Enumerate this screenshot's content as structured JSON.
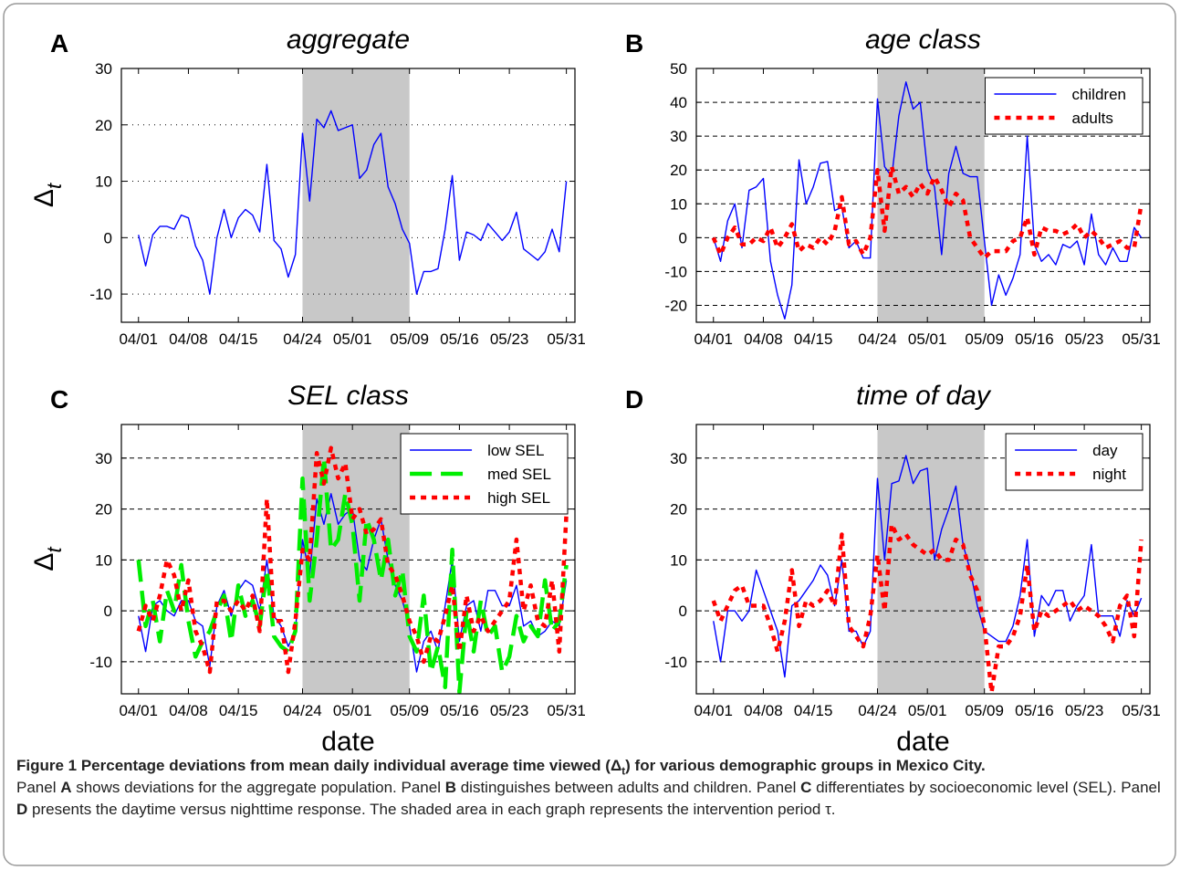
{
  "chart_data": [
    {
      "type": "line",
      "label": "A",
      "title": "aggregate",
      "ylabel": {
        "symbol": "Δ",
        "subscript": "t"
      },
      "categories": [
        "04/01",
        null,
        null,
        null,
        null,
        null,
        null,
        "04/08",
        null,
        null,
        null,
        null,
        null,
        null,
        "04/15",
        null,
        null,
        null,
        null,
        null,
        null,
        null,
        null,
        "04/24",
        null,
        null,
        null,
        null,
        null,
        null,
        "05/01",
        null,
        null,
        null,
        null,
        null,
        null,
        null,
        "05/09",
        null,
        null,
        null,
        null,
        null,
        null,
        "05/16",
        null,
        null,
        null,
        null,
        null,
        null,
        "05/23",
        null,
        null,
        null,
        null,
        null,
        null,
        null,
        "05/31"
      ],
      "color": "#0000ff",
      "linestyle": "solid",
      "values": [
        0.5,
        -5,
        0.5,
        2,
        2,
        1.5,
        4,
        3.5,
        -1.5,
        -4,
        -10,
        0,
        5,
        0,
        3.5,
        5,
        4,
        1,
        13,
        -0.5,
        -2,
        -7,
        -3,
        18.5,
        6.5,
        21,
        19.5,
        22.5,
        19,
        19.5,
        20,
        10.5,
        12,
        16.5,
        18.5,
        9,
        6,
        1.5,
        -1,
        -10,
        -6,
        -6,
        -5.5,
        1.5,
        11,
        -4,
        1,
        0.5,
        -0.5,
        2.5,
        1,
        -0.5,
        1,
        4.5,
        -2,
        -3,
        -4,
        -2.5,
        1.5,
        -2.5,
        10
      ],
      "ylim": [
        -15,
        30
      ],
      "yticks": [
        -10,
        0,
        10,
        20,
        30
      ],
      "grid": true,
      "grid_style": "dotted",
      "shade": [
        "04/24",
        "05/09"
      ]
    },
    {
      "type": "line",
      "label": "B",
      "title": "age class",
      "categories": [
        "04/01",
        null,
        null,
        null,
        null,
        null,
        null,
        "04/08",
        null,
        null,
        null,
        null,
        null,
        null,
        "04/15",
        null,
        null,
        null,
        null,
        null,
        null,
        null,
        null,
        "04/24",
        null,
        null,
        null,
        null,
        null,
        null,
        "05/01",
        null,
        null,
        null,
        null,
        null,
        null,
        null,
        "05/09",
        null,
        null,
        null,
        null,
        null,
        null,
        "05/16",
        null,
        null,
        null,
        null,
        null,
        null,
        "05/23",
        null,
        null,
        null,
        null,
        null,
        null,
        null,
        "05/31"
      ],
      "series": [
        {
          "name": "children",
          "color": "#0000ff",
          "linestyle": "solid",
          "values": [
            0,
            -7,
            5,
            10,
            -3,
            14,
            15,
            17.5,
            -7,
            -17,
            -24,
            -14,
            23,
            10,
            15,
            22,
            22.5,
            8,
            9,
            -3,
            -1,
            -6,
            -6,
            41,
            21,
            18,
            36,
            46,
            38,
            40,
            20,
            15,
            -5,
            19,
            27,
            19,
            18,
            18,
            -1,
            -20,
            -11,
            -17,
            -12,
            -5,
            30,
            -2,
            -7,
            -5,
            -8,
            -2,
            -3,
            -1,
            -8,
            7,
            -5,
            -8,
            -3,
            -7,
            -7,
            3,
            0
          ]
        },
        {
          "name": "adults",
          "color": "#ff0000",
          "linestyle": "dotted",
          "values": [
            0,
            -5,
            0,
            3,
            -2,
            -2,
            0,
            -1,
            3,
            -3,
            0,
            4,
            -4,
            -2,
            -3,
            0,
            -2,
            2,
            12,
            -2,
            -1,
            -5,
            0,
            20,
            2,
            21,
            13,
            15,
            12,
            16,
            13,
            18,
            14,
            9,
            13,
            11,
            0,
            -3,
            -6,
            -4,
            -4,
            -4,
            -1,
            0,
            6,
            -5,
            3,
            2,
            2,
            1,
            2,
            4,
            0,
            2,
            0,
            -3,
            -2,
            -1,
            -3,
            -3,
            10
          ]
        }
      ],
      "ylim": [
        -25,
        50
      ],
      "yticks": [
        -20,
        -10,
        0,
        10,
        20,
        30,
        40,
        50
      ],
      "grid": true,
      "grid_style": "dashed",
      "shade": [
        "04/24",
        "05/09"
      ],
      "legend": "upper right"
    },
    {
      "type": "line",
      "label": "C",
      "title": "SEL class",
      "ylabel": {
        "symbol": "Δ",
        "subscript": "t"
      },
      "xlabel": "date",
      "categories": [
        "04/01",
        null,
        null,
        null,
        null,
        null,
        null,
        "04/08",
        null,
        null,
        null,
        null,
        null,
        null,
        "04/15",
        null,
        null,
        null,
        null,
        null,
        null,
        null,
        null,
        "04/24",
        null,
        null,
        null,
        null,
        null,
        null,
        "05/01",
        null,
        null,
        null,
        null,
        null,
        null,
        null,
        "05/09",
        null,
        null,
        null,
        null,
        null,
        null,
        "05/16",
        null,
        null,
        null,
        null,
        null,
        null,
        "05/23",
        null,
        null,
        null,
        null,
        null,
        null,
        null,
        "05/31"
      ],
      "series": [
        {
          "name": "low SEL",
          "color": "#0000ff",
          "linestyle": "solid",
          "values": [
            -1,
            -8,
            1,
            2,
            0,
            -1,
            2,
            2,
            -2,
            -3,
            -11,
            1,
            4,
            -1,
            4,
            6,
            5,
            0,
            10,
            -1,
            -3,
            -7,
            -4,
            14,
            7,
            22,
            17,
            23,
            17,
            19,
            20,
            10,
            8,
            14,
            18,
            10,
            5,
            2,
            -3,
            -12,
            -6,
            -4,
            -8,
            1,
            10,
            -6,
            1,
            2,
            -4,
            4,
            4,
            1,
            1,
            5,
            -3,
            -2,
            -5,
            -4,
            -2,
            -3,
            6
          ]
        },
        {
          "name": "med SEL",
          "color": "#00ee00",
          "linestyle": "dashed",
          "values": [
            10,
            -3,
            2,
            -6,
            4,
            0,
            9,
            -2,
            -9,
            -6,
            -4,
            0,
            3,
            -6,
            5,
            -1,
            2,
            -3,
            8,
            -5,
            -7,
            -8,
            -4,
            26,
            2,
            14,
            30,
            12,
            14,
            23,
            17,
            2,
            18,
            14,
            6,
            14,
            3,
            8,
            -5,
            -8,
            3,
            -12,
            -7,
            -15,
            12,
            -16,
            0,
            -8,
            2,
            -5,
            -3,
            -12,
            -9,
            -1,
            -6,
            -3,
            -5,
            6,
            -4,
            -2,
            9
          ]
        },
        {
          "name": "high SEL",
          "color": "#ff0000",
          "linestyle": "dotted",
          "values": [
            -4,
            1,
            -2,
            3,
            10,
            7,
            0,
            6,
            -4,
            -7,
            -12,
            2,
            2,
            0,
            2,
            0,
            3,
            -4,
            22,
            -2,
            -2,
            -12,
            -2,
            12,
            10,
            31,
            25,
            32,
            26,
            29,
            18,
            20,
            15,
            16,
            18,
            9,
            7,
            3,
            -2,
            -5,
            -10,
            -5,
            -6,
            -1,
            5,
            -8,
            3,
            -4,
            -1,
            -4,
            -2,
            0,
            2,
            14,
            0,
            5,
            -2,
            -3,
            6,
            -8,
            19
          ]
        }
      ],
      "ylim": [
        -16.3,
        36.6
      ],
      "yticks": [
        -10,
        0,
        10,
        20,
        30
      ],
      "grid": true,
      "grid_style": "dashed",
      "shade": [
        "04/24",
        "05/09"
      ],
      "legend": "upper right"
    },
    {
      "type": "line",
      "label": "D",
      "title": "time of day",
      "xlabel": "date",
      "categories": [
        "04/01",
        null,
        null,
        null,
        null,
        null,
        null,
        "04/08",
        null,
        null,
        null,
        null,
        null,
        null,
        "04/15",
        null,
        null,
        null,
        null,
        null,
        null,
        null,
        null,
        "04/24",
        null,
        null,
        null,
        null,
        null,
        null,
        "05/01",
        null,
        null,
        null,
        null,
        null,
        null,
        null,
        "05/09",
        null,
        null,
        null,
        null,
        null,
        null,
        "05/16",
        null,
        null,
        null,
        null,
        null,
        null,
        "05/23",
        null,
        null,
        null,
        null,
        null,
        null,
        null,
        "05/31"
      ],
      "series": [
        {
          "name": "day",
          "color": "#0000ff",
          "linestyle": "solid",
          "values": [
            -2,
            -10,
            0,
            0,
            -2,
            0,
            8,
            4,
            0,
            -4,
            -13,
            1,
            2,
            4,
            6,
            9,
            7,
            1,
            10,
            -4,
            -4,
            -7,
            -4,
            26,
            10,
            25,
            25.5,
            30.5,
            25,
            27.5,
            28,
            10,
            16,
            20,
            24.5,
            13,
            8,
            1,
            -4,
            -5,
            -6,
            -6,
            -3,
            3,
            14,
            -5,
            3,
            1,
            4,
            4,
            -2,
            1,
            3,
            13,
            -1,
            -1,
            -1,
            -5,
            2,
            -1,
            2.5
          ]
        },
        {
          "name": "night",
          "color": "#ff0000",
          "linestyle": "dotted",
          "values": [
            2,
            -2,
            1,
            4,
            5,
            1,
            1,
            1,
            -3,
            -8,
            -2,
            8,
            -3,
            2,
            1,
            2,
            4,
            1,
            15,
            -3,
            -5,
            -7,
            -1,
            11,
            0,
            17,
            14,
            15,
            13,
            12,
            11,
            12,
            10,
            10,
            14,
            13,
            7,
            4,
            -3,
            -16,
            -7,
            -7,
            -5,
            -1,
            9,
            -4,
            0,
            -1,
            0,
            1,
            2,
            0,
            1,
            0,
            -1,
            -3,
            -6,
            1,
            3,
            -5,
            14
          ]
        }
      ],
      "ylim": [
        -16.3,
        36.6
      ],
      "yticks": [
        -10,
        0,
        10,
        20,
        30
      ],
      "grid": true,
      "grid_style": "dashed",
      "shade": [
        "04/24",
        "05/09"
      ],
      "legend": "upper right"
    }
  ],
  "caption": {
    "title": [
      "Figure 1 Percentage deviations from mean daily individual average time viewed (Δ",
      "t",
      ") for various demographic groups in Mexico City."
    ],
    "body": [
      "Panel ",
      "A",
      " shows deviations for the aggregate population. Panel ",
      "B",
      " distinguishes between adults and children. Panel ",
      "C",
      " differentiates by socioeconomic level (SEL). Panel ",
      "D",
      " presents the daytime versus nighttime response. The shaded area in each graph represents the intervention period τ."
    ]
  }
}
